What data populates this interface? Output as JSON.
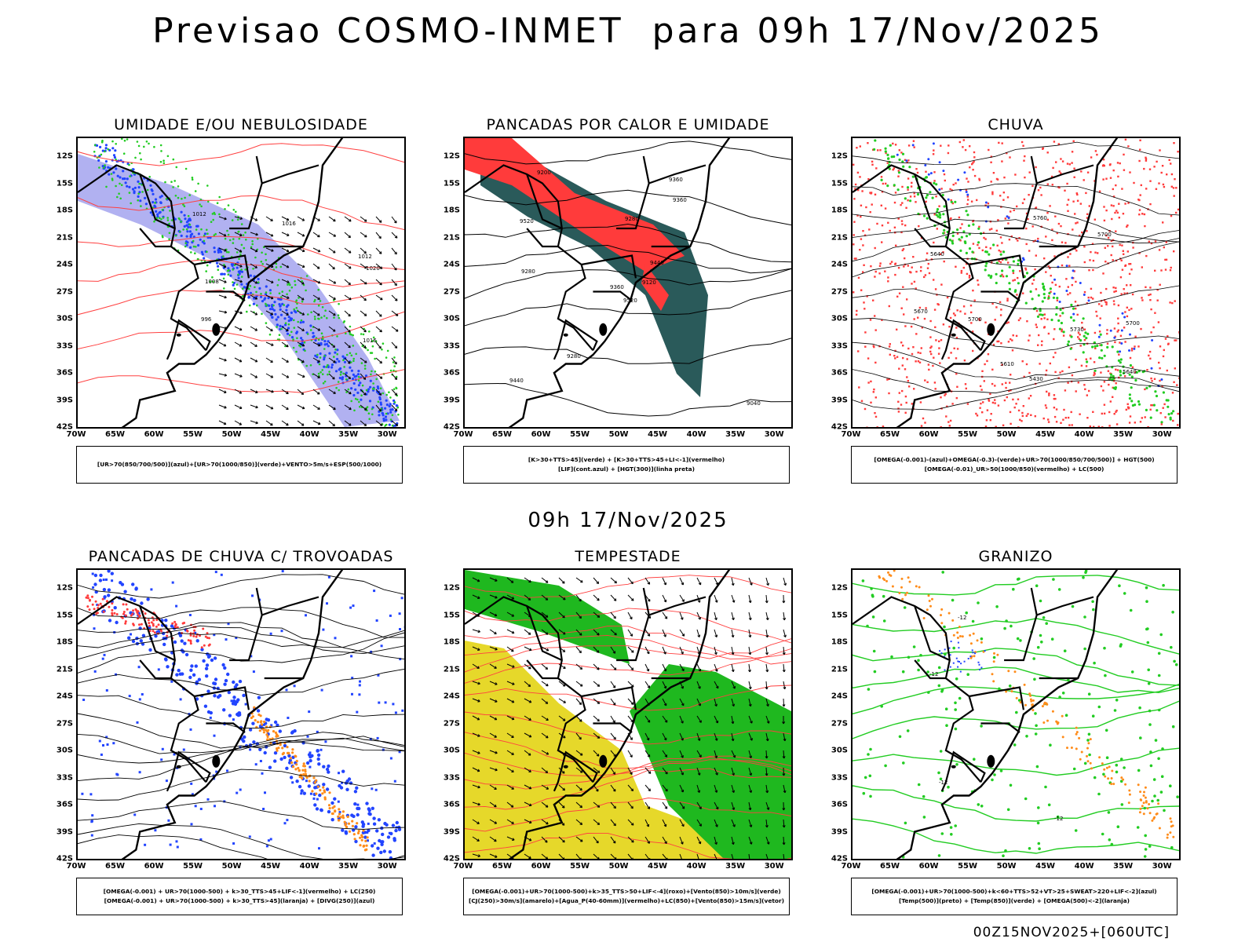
{
  "header": {
    "title": "Previsao COSMO-INMET  para 09h 17/Nov/2025",
    "mid_title": "09h 17/Nov/2025",
    "run_label": "00Z15NOV2025+[060UTC]"
  },
  "axes": {
    "lat_labels": [
      "12S",
      "15S",
      "18S",
      "21S",
      "24S",
      "27S",
      "30S",
      "33S",
      "36S",
      "39S",
      "42S"
    ],
    "lon_labels": [
      "70W",
      "65W",
      "60W",
      "55W",
      "50W",
      "45W",
      "40W",
      "35W",
      "30W"
    ]
  },
  "panels": [
    {
      "title": "UMIDADE E/OU NEBULOSIDADE",
      "legend": [
        "[UR>70(850/700/500)](azul)+[UR>70(1000/850)](verde)+VENTO>5m/s+ESP(500/1000)"
      ],
      "contour_labels": [
        "1012",
        "1012",
        "1016",
        "1020",
        "1008",
        "1016",
        "996"
      ]
    },
    {
      "title": "PANCADAS POR CALOR E UMIDADE",
      "legend": [
        "[K>30+TTS>45](verde)  +  [K>30+TTS>45+LI<-1](vermelho)",
        "[LIF](cont.azul)  +  [HGT(300)](linha preta)"
      ],
      "contour_labels": [
        "9520",
        "9520",
        "9360",
        "9440",
        "9440",
        "9280",
        "9360",
        "9280",
        "9360",
        "9120",
        "9200",
        "9040",
        "9280"
      ]
    },
    {
      "title": "CHUVA",
      "legend": [
        "[OMEGA(-0.001)-(azul)+OMEGA(-0.3)-(verde)+UR>70(1000/850/700/500)]  +  HGT(500)",
        "[OMEGA(-0.01)_UR>50(1000/850)(vermelho)  +  LC(500)"
      ],
      "contour_labels": [
        "5760",
        "5730",
        "5700",
        "5670",
        "5640",
        "5610",
        "5700",
        "5640",
        "5430",
        "5700"
      ]
    },
    {
      "title": "PANCADAS DE CHUVA C/ TROVOADAS",
      "legend": [
        "[OMEGA(-0.001)  +  UR>70(1000-500)  +  k>30_TTS>45+LIF<-1](vermelho)  +  LC(250)",
        "[OMEGA(-0.001)  +  UR>70(1000-500)  +  k>30_TTS>45](laranja)  +  [DIVG(250)](azul)"
      ]
    },
    {
      "title": "TEMPESTADE",
      "legend": [
        "[OMEGA(-0.001)+UR>70(1000-500)+k>35_TTS>50+LIF<-4](roxo)+[Vento(850)>10m/s](verde)",
        "[CJ(250)>30m/s](amarelo)+[Agua_P(40-60mm)](vermelho)+LC(850)+[Vento(850)>15m/s](vetor)"
      ]
    },
    {
      "title": "GRANIZO",
      "legend": [
        "[OMEGA(-0.001)+UR>70(1000-500)+k<60+TTS>52+VT>25+SWEAT>220+LIF<-2](azul)",
        "[Temp(500)](preto)  +  [Temp(850)](verde)  +  [OMEGA(500)<-2](laranja)"
      ],
      "contour_labels": [
        "-12",
        "-12",
        "-12",
        "-12"
      ]
    }
  ],
  "colors": {
    "red": "#ff3b3b",
    "green": "#22cc22",
    "blue": "#2244ff",
    "lavender": "#a8a8f0",
    "teal": "#2a5a5a",
    "yellow": "#e6d82a",
    "orange": "#ff8c1a"
  }
}
